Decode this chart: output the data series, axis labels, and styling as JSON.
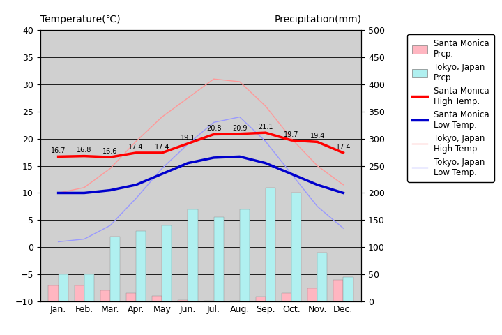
{
  "months": [
    "Jan.",
    "Feb.",
    "Mar.",
    "Apr.",
    "May",
    "Jun.",
    "Jul.",
    "Aug.",
    "Sep.",
    "Oct.",
    "Nov.",
    "Dec."
  ],
  "month_indices": [
    1,
    2,
    3,
    4,
    5,
    6,
    7,
    8,
    9,
    10,
    11,
    12
  ],
  "sm_high_temp": [
    16.7,
    16.8,
    16.6,
    17.4,
    17.4,
    19.1,
    20.8,
    20.9,
    21.1,
    19.7,
    19.4,
    17.4
  ],
  "sm_low_temp": [
    10.0,
    10.0,
    10.5,
    11.5,
    13.5,
    15.5,
    16.5,
    16.7,
    15.5,
    13.5,
    11.5,
    10.0
  ],
  "tokyo_high_temp": [
    10.0,
    11.0,
    14.5,
    19.5,
    24.0,
    27.5,
    31.0,
    30.5,
    26.0,
    20.0,
    15.0,
    11.5
  ],
  "tokyo_low_temp": [
    1.0,
    1.5,
    4.0,
    9.0,
    14.5,
    19.0,
    23.0,
    24.0,
    19.5,
    13.5,
    7.5,
    3.5
  ],
  "sm_prcp_mm": [
    30,
    30,
    20,
    15,
    10,
    2,
    1,
    1,
    9,
    15,
    25,
    40
  ],
  "tokyo_prcp_mm": [
    50,
    50,
    120,
    130,
    140,
    170,
    155,
    170,
    210,
    200,
    90,
    45
  ],
  "sm_high_color": "#ff0000",
  "sm_low_color": "#0000cc",
  "tokyo_high_color": "#ff9999",
  "tokyo_low_color": "#9999ff",
  "sm_prcp_color": "#ffb6c1",
  "tokyo_prcp_color": "#b0f0f0",
  "bg_color": "#d0d0d0",
  "title_left": "Temperature(℃)",
  "title_right": "Precipitation(mm)",
  "temp_ylim": [
    -10,
    40
  ],
  "temp_yticks": [
    -10,
    -5,
    0,
    5,
    10,
    15,
    20,
    25,
    30,
    35,
    40
  ],
  "prcp_ylim": [
    0,
    500
  ],
  "prcp_yticks": [
    0,
    50,
    100,
    150,
    200,
    250,
    300,
    350,
    400,
    450,
    500
  ],
  "label_sm_high": "Santa Monica\nHigh Temp.",
  "label_sm_low": "Santa Monica\nLow Temp.",
  "label_tokyo_high": "Tokyo, Japan\nHigh Temp.",
  "label_tokyo_low": "Tokyo, Japan\nLow Temp.",
  "label_sm_prcp": "Santa Monica\nPrcp.",
  "label_tokyo_prcp": "Tokyo, Japan\nPrcp."
}
